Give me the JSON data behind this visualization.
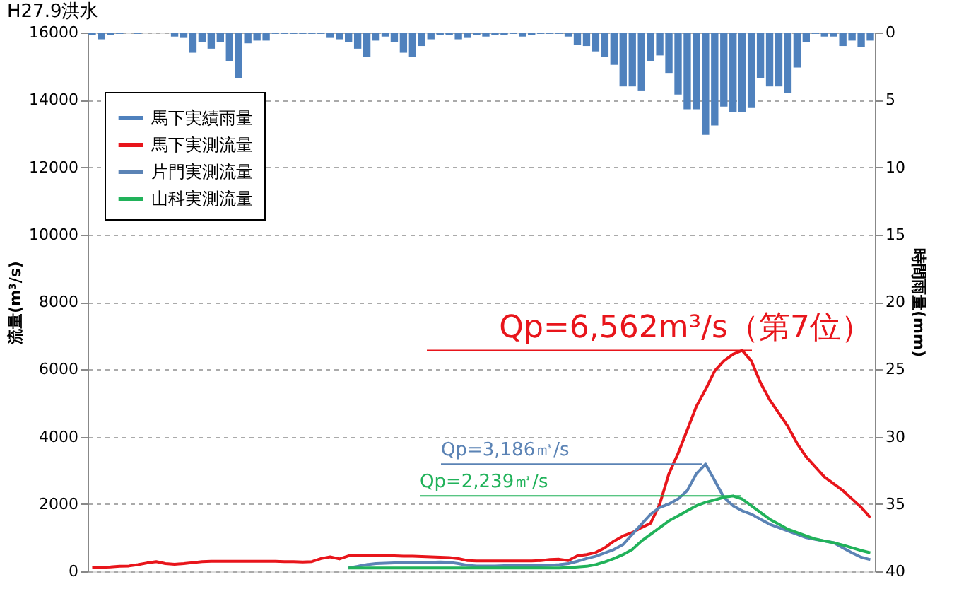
{
  "chart_data": {
    "type": "line",
    "title": "H27.9洪水",
    "ylabel": "流量(m³/s)",
    "y2label": "時間雨量(mm)",
    "categories": [
      null,
      null,
      null,
      null,
      null,
      null,
      null,
      null,
      null,
      null,
      null,
      null,
      null,
      null,
      null,
      null,
      null,
      null,
      null,
      null,
      null,
      null,
      null,
      null,
      null,
      null,
      null,
      null,
      null,
      null,
      null,
      null,
      null,
      null,
      null,
      null,
      null,
      null,
      null,
      null,
      null,
      null,
      null,
      null,
      null,
      null,
      null,
      null,
      null,
      null,
      null,
      null,
      null,
      null,
      null,
      null,
      null,
      null,
      null,
      null,
      null,
      null,
      null,
      null,
      null,
      null,
      null,
      null,
      null,
      null,
      null,
      null,
      null,
      null,
      null,
      null,
      null,
      null,
      null,
      null,
      null,
      null,
      null,
      null,
      null,
      null
    ],
    "series": [
      {
        "name": "馬下実績雨量",
        "type": "bar",
        "axis": "y2",
        "color": "#4f81bd",
        "values": [
          0.2,
          0.5,
          0.2,
          0.1,
          0,
          0.1,
          0,
          0,
          0,
          0.3,
          0.4,
          1.5,
          0.7,
          1.2,
          0.7,
          2.1,
          3.4,
          0.8,
          0.6,
          0.6,
          0.1,
          0.1,
          0.1,
          0.1,
          0.1,
          0.1,
          0.4,
          0.5,
          0.7,
          1.2,
          1.8,
          0.6,
          0.3,
          0.7,
          1.5,
          1.8,
          1.0,
          0.5,
          0.2,
          0.2,
          0.5,
          0.4,
          0.2,
          0.3,
          0.2,
          0.2,
          0.1,
          0.3,
          0.2,
          0.1,
          0.1,
          0.1,
          0.3,
          0.9,
          1.0,
          1.4,
          1.8,
          2.4,
          4.0,
          4.0,
          4.3,
          2.1,
          1.7,
          3.0,
          4.6,
          5.7,
          5.7,
          7.6,
          6.9,
          5.5,
          5.9,
          5.9,
          5.6,
          3.4,
          4.0,
          4.0,
          4.5,
          2.6,
          0.7,
          0.1,
          0.3,
          0.3,
          1.0,
          0.6,
          1.1,
          0.6
        ]
      },
      {
        "name": "馬下実測流量",
        "color": "#e8151b",
        "values": [
          110,
          120,
          130,
          150,
          160,
          200,
          250,
          290,
          230,
          210,
          230,
          260,
          290,
          300,
          300,
          300,
          300,
          300,
          300,
          300,
          300,
          290,
          290,
          280,
          290,
          380,
          430,
          370,
          460,
          480,
          480,
          480,
          470,
          460,
          450,
          450,
          440,
          430,
          420,
          410,
          380,
          320,
          310,
          310,
          310,
          310,
          310,
          310,
          310,
          320,
          350,
          360,
          320,
          460,
          500,
          560,
          700,
          900,
          1050,
          1150,
          1300,
          1430,
          2000,
          2900,
          3500,
          4200,
          4900,
          5400,
          5950,
          6250,
          6450,
          6562,
          6250,
          5600,
          5100,
          4700,
          4300,
          3800,
          3400,
          3100,
          2800,
          2600,
          2400,
          2150,
          1900,
          1600
        ]
      },
      {
        "name": "片門実測流量",
        "color": "#5b83b5",
        "values": [
          null,
          null,
          null,
          null,
          null,
          null,
          null,
          null,
          null,
          null,
          null,
          null,
          null,
          null,
          null,
          null,
          null,
          null,
          null,
          null,
          null,
          null,
          null,
          null,
          null,
          null,
          null,
          null,
          100,
          150,
          200,
          230,
          240,
          250,
          260,
          270,
          260,
          270,
          280,
          270,
          230,
          180,
          160,
          160,
          160,
          170,
          170,
          170,
          170,
          170,
          180,
          200,
          230,
          300,
          380,
          450,
          550,
          650,
          800,
          1100,
          1400,
          1700,
          1900,
          2000,
          2150,
          2400,
          2900,
          3186,
          2700,
          2200,
          1950,
          1800,
          1700,
          1550,
          1400,
          1300,
          1200,
          1100,
          1000,
          950,
          900,
          850,
          700,
          550,
          420,
          350
        ]
      },
      {
        "name": "山科実測流量",
        "color": "#21b25a",
        "values": [
          null,
          null,
          null,
          null,
          null,
          null,
          null,
          null,
          null,
          null,
          null,
          null,
          null,
          null,
          null,
          null,
          null,
          null,
          null,
          null,
          null,
          null,
          null,
          null,
          null,
          null,
          null,
          null,
          100,
          100,
          100,
          100,
          100,
          100,
          100,
          100,
          100,
          100,
          100,
          100,
          100,
          100,
          100,
          100,
          100,
          100,
          100,
          100,
          100,
          100,
          100,
          100,
          110,
          130,
          150,
          200,
          280,
          380,
          500,
          650,
          900,
          1100,
          1300,
          1500,
          1650,
          1800,
          1950,
          2050,
          2120,
          2200,
          2239,
          2150,
          1950,
          1750,
          1550,
          1400,
          1250,
          1150,
          1050,
          960,
          900,
          850,
          780,
          700,
          620,
          550
        ]
      }
    ],
    "ylim": [
      0,
      16000
    ],
    "yticks": [
      0,
      2000,
      4000,
      6000,
      8000,
      10000,
      12000,
      14000,
      16000
    ],
    "y2lim": [
      40,
      0
    ],
    "y2ticks": [
      0,
      5,
      10,
      15,
      20,
      25,
      30,
      35,
      40
    ],
    "annotations": [
      "Qp=6,562m³/s（第7位）",
      "Qp=3,186㎥/s",
      "Qp=2,239㎥/s"
    ],
    "grid": true,
    "legend": "top left",
    "line_style": "solid",
    "marker": "none"
  }
}
